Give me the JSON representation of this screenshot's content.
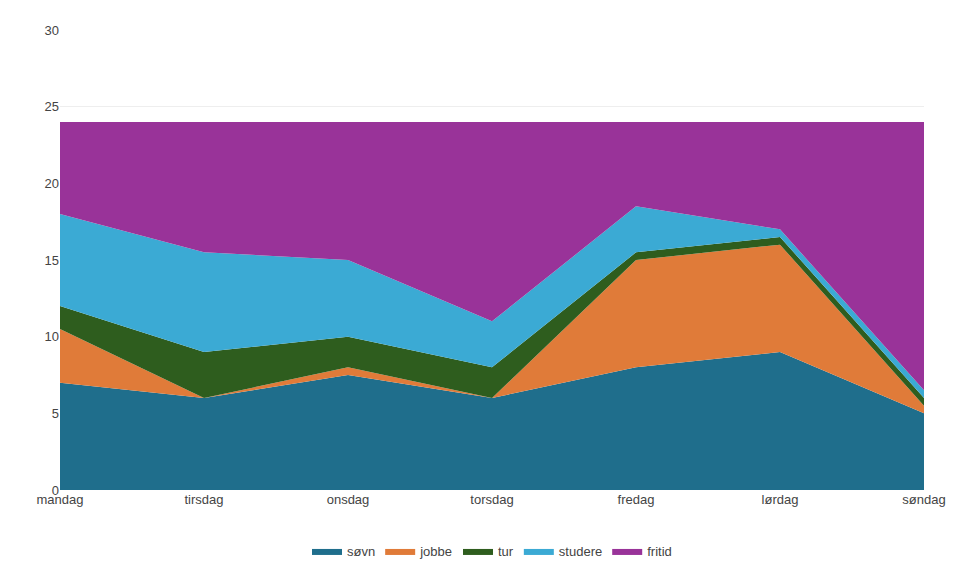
{
  "chart_data": {
    "type": "area",
    "stacked": true,
    "categories": [
      "mandag",
      "tirsdag",
      "onsdag",
      "torsdag",
      "fredag",
      "lørdag",
      "søndag"
    ],
    "series": [
      {
        "name": "søvn",
        "color": "#1F6E8C",
        "values": [
          7,
          6,
          7.5,
          6,
          8,
          9,
          5
        ]
      },
      {
        "name": "jobbe",
        "color": "#E07B39",
        "values": [
          3.5,
          0,
          0.5,
          0,
          7,
          7,
          0.5
        ]
      },
      {
        "name": "tur",
        "color": "#2E5D1E",
        "values": [
          1.5,
          3,
          2,
          2,
          0.5,
          0.5,
          0.5
        ]
      },
      {
        "name": "studere",
        "color": "#3BAAD4",
        "values": [
          6,
          6.5,
          5,
          3,
          3,
          0.5,
          0.5
        ]
      },
      {
        "name": "fritid",
        "color": "#993399",
        "values": [
          6,
          8.5,
          9,
          13,
          5.5,
          7,
          17.5
        ]
      }
    ],
    "ylim": [
      0,
      30
    ],
    "yticks": [
      0,
      5,
      10,
      15,
      20,
      25,
      30
    ],
    "grid": true,
    "legend": "bottom"
  }
}
